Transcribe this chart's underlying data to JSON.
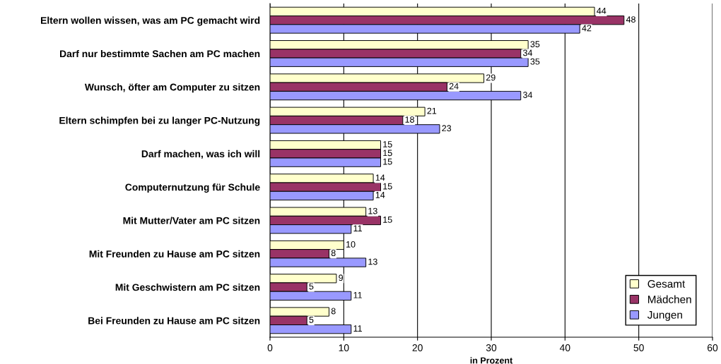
{
  "chart_data": {
    "type": "bar",
    "orientation": "horizontal",
    "xlabel": "in Prozent",
    "categories": [
      "Eltern wollen wissen, was am PC gemacht wird",
      "Darf nur bestimmte Sachen am PC machen",
      "Wunsch, öfter am Computer zu sitzen",
      "Eltern schimpfen bei zu langer PC-Nutzung",
      "Darf machen, was ich will",
      "Computernutzung für Schule",
      "Mit Mutter/Vater am PC sitzen",
      "Mit Freunden zu Hause am PC sitzen",
      "Mit Geschwistern am PC sitzen",
      "Bei Freunden zu Hause am PC sitzen"
    ],
    "series": [
      {
        "name": "Gesamt",
        "color": "#ffffcc",
        "values": [
          44,
          35,
          29,
          21,
          15,
          14,
          13,
          10,
          9,
          8
        ]
      },
      {
        "name": "Mädchen",
        "color": "#993366",
        "values": [
          48,
          34,
          24,
          18,
          15,
          15,
          15,
          8,
          5,
          5
        ]
      },
      {
        "name": "Jungen",
        "color": "#9999ff",
        "values": [
          42,
          35,
          34,
          23,
          15,
          14,
          11,
          13,
          11,
          11
        ]
      }
    ],
    "xlim": [
      0,
      60
    ],
    "xticks": [
      0,
      10,
      20,
      30,
      40,
      50,
      60
    ],
    "grid": "x",
    "legend": "bottom right",
    "data_labels": true
  }
}
